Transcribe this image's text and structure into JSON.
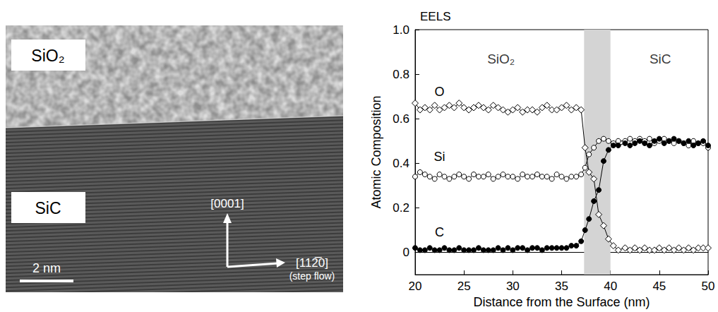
{
  "image_panel": {
    "top_layer": "SiO₂",
    "substrate": "SiC",
    "direction_up": "[0001]",
    "direction_right": "[112̅0]",
    "direction_right_note": "(step flow)",
    "scale_bar": "2 nm"
  },
  "chart_data": {
    "type": "line",
    "title": "EELS",
    "x_label": "Distance from the Surface (nm)",
    "y_label": "Atomic Composition",
    "x": [
      20,
      20.5,
      21,
      21.5,
      22,
      22.5,
      23,
      23.5,
      24,
      24.5,
      25,
      25.5,
      26,
      26.5,
      27,
      27.5,
      28,
      28.5,
      29,
      29.5,
      30,
      30.5,
      31,
      31.5,
      32,
      32.5,
      33,
      33.5,
      34,
      34.5,
      35,
      35.5,
      36,
      36.5,
      37,
      37.4,
      37.8,
      38.3,
      38.8,
      39.3,
      39.8,
      40.3,
      40.8,
      41.5,
      42,
      42.5,
      43,
      43.5,
      44,
      44.5,
      45,
      45.5,
      46,
      46.5,
      47,
      47.5,
      48,
      48.5,
      49,
      49.5,
      50
    ],
    "series": [
      {
        "name": "O",
        "color": "#000000",
        "marker": "diamond_open",
        "line_style": "solid",
        "values": [
          0.67,
          0.64,
          0.65,
          0.64,
          0.66,
          0.64,
          0.65,
          0.66,
          0.65,
          0.67,
          0.65,
          0.64,
          0.65,
          0.66,
          0.65,
          0.64,
          0.66,
          0.65,
          0.64,
          0.63,
          0.64,
          0.65,
          0.63,
          0.64,
          0.64,
          0.63,
          0.65,
          0.66,
          0.64,
          0.64,
          0.65,
          0.66,
          0.64,
          0.65,
          0.64,
          0.47,
          0.36,
          0.33,
          0.17,
          0.12,
          0.06,
          0.03,
          0.01,
          0.02,
          0.01,
          0.02,
          0.01,
          0.02,
          0.01,
          0.01,
          0.02,
          0.01,
          0.02,
          0.01,
          0.02,
          0.01,
          0.02,
          0.01,
          0.02,
          0.02,
          0.02
        ]
      },
      {
        "name": "Si",
        "color": "#000000",
        "marker": "circle_open",
        "line_style": "solid",
        "values": [
          0.34,
          0.36,
          0.35,
          0.34,
          0.33,
          0.35,
          0.34,
          0.33,
          0.34,
          0.35,
          0.34,
          0.33,
          0.35,
          0.34,
          0.34,
          0.35,
          0.33,
          0.34,
          0.35,
          0.34,
          0.34,
          0.33,
          0.35,
          0.34,
          0.34,
          0.35,
          0.34,
          0.34,
          0.33,
          0.35,
          0.34,
          0.33,
          0.34,
          0.34,
          0.35,
          0.38,
          0.44,
          0.47,
          0.5,
          0.51,
          0.5,
          0.49,
          0.5,
          0.5,
          0.51,
          0.5,
          0.51,
          0.5,
          0.51,
          0.49,
          0.5,
          0.51,
          0.5,
          0.49,
          0.5,
          0.49,
          0.48,
          0.5,
          0.49,
          0.49,
          0.47
        ]
      },
      {
        "name": "C",
        "color": "#000000",
        "marker": "circle",
        "line_style": "solid",
        "values": [
          0.02,
          0.01,
          0.01,
          0.02,
          0.01,
          0.01,
          0.02,
          0.01,
          0.01,
          0.02,
          0.01,
          0.01,
          0.01,
          0.02,
          0.01,
          0.01,
          0.01,
          0.02,
          0.01,
          0.02,
          0.01,
          0.02,
          0.02,
          0.01,
          0.02,
          0.02,
          0.01,
          0.02,
          0.02,
          0.02,
          0.02,
          0.02,
          0.03,
          0.03,
          0.05,
          0.1,
          0.15,
          0.23,
          0.28,
          0.41,
          0.46,
          0.48,
          0.48,
          0.49,
          0.48,
          0.49,
          0.5,
          0.49,
          0.48,
          0.5,
          0.51,
          0.49,
          0.5,
          0.51,
          0.5,
          0.49,
          0.5,
          0.48,
          0.49,
          0.5,
          0.48
        ]
      }
    ],
    "shaded_x": [
      37.3,
      40.0
    ],
    "annotations": [
      {
        "text": "SiO₂",
        "x": 28.8,
        "y": 0.87
      },
      {
        "text": "SiC",
        "x": 45.1,
        "y": 0.87
      }
    ],
    "xlim": [
      20,
      50
    ],
    "xticks": [
      20,
      25,
      30,
      35,
      40,
      45,
      50
    ],
    "ylim": [
      -0.1,
      1.0
    ],
    "yticks": [
      0,
      0.2,
      0.4,
      0.6,
      0.8,
      {
        "value": 1,
        "label": "1.0"
      }
    ],
    "grid": false
  }
}
